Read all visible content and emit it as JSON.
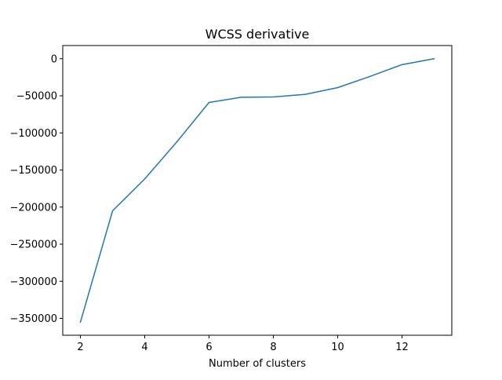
{
  "chart_data": {
    "type": "line",
    "title": "WCSS derivative",
    "xlabel": "Number of clusters",
    "ylabel": "",
    "x": [
      2,
      3,
      4,
      5,
      6,
      7,
      8,
      9,
      10,
      11,
      12,
      13
    ],
    "series": [
      {
        "values": [
          -355000,
          -205000,
          -162000,
          -112000,
          -59000,
          -52000,
          -51500,
          -48000,
          -39000,
          -24000,
          -8000,
          0
        ]
      }
    ],
    "xlim": [
      1.45,
      13.55
    ],
    "ylim": [
      -372750,
      17750
    ],
    "xticks": [
      2,
      4,
      6,
      8,
      10,
      12
    ],
    "yticks": [
      0,
      -50000,
      -100000,
      -150000,
      -200000,
      -250000,
      -300000,
      -350000
    ],
    "xtick_labels": [
      "2",
      "4",
      "6",
      "8",
      "10",
      "12"
    ],
    "ytick_labels": [
      "0",
      "−50000",
      "−100000",
      "−150000",
      "−200000",
      "−250000",
      "−300000",
      "−350000"
    ],
    "grid": false,
    "colors": {
      "line": "#1f77b4",
      "axes": "#000000",
      "background": "#ffffff"
    }
  }
}
